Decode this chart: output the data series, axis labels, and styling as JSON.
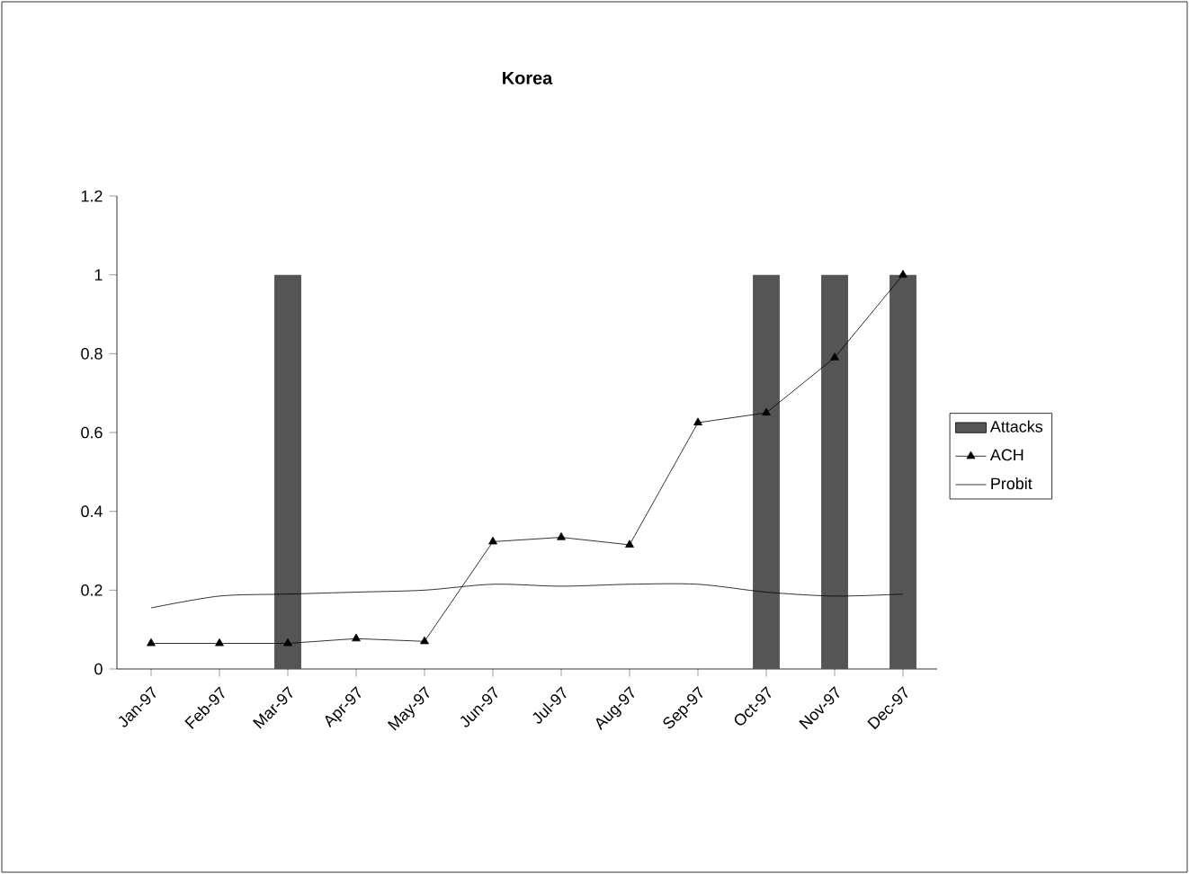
{
  "chart_data": {
    "type": "bar",
    "title": "Korea",
    "categories": [
      "Jan-97",
      "Feb-97",
      "Mar-97",
      "Apr-97",
      "May-97",
      "Jun-97",
      "Jul-97",
      "Aug-97",
      "Sep-97",
      "Oct-97",
      "Nov-97",
      "Dec-97"
    ],
    "series": [
      {
        "name": "Attacks",
        "color": "#555555",
        "values": [
          0,
          0,
          1,
          0,
          0,
          0,
          0,
          0,
          0,
          1,
          1,
          1
        ]
      },
      {
        "name": "ACH",
        "type": "line",
        "marker": "triangle",
        "color": "#000000",
        "values": [
          0.065,
          0.065,
          0.065,
          0.077,
          0.07,
          0.323,
          0.334,
          0.315,
          0.625,
          0.65,
          0.79,
          1.0
        ]
      },
      {
        "name": "Probit",
        "type": "line",
        "marker": "none",
        "color": "#000000",
        "values": [
          0.155,
          0.185,
          0.19,
          0.195,
          0.2,
          0.215,
          0.21,
          0.215,
          0.215,
          0.195,
          0.185,
          0.19
        ]
      }
    ],
    "ylim": [
      0,
      1.2
    ],
    "yticks": [
      0,
      0.2,
      0.4,
      0.6,
      0.8,
      1,
      1.2
    ],
    "grid": false,
    "legend": "right"
  }
}
